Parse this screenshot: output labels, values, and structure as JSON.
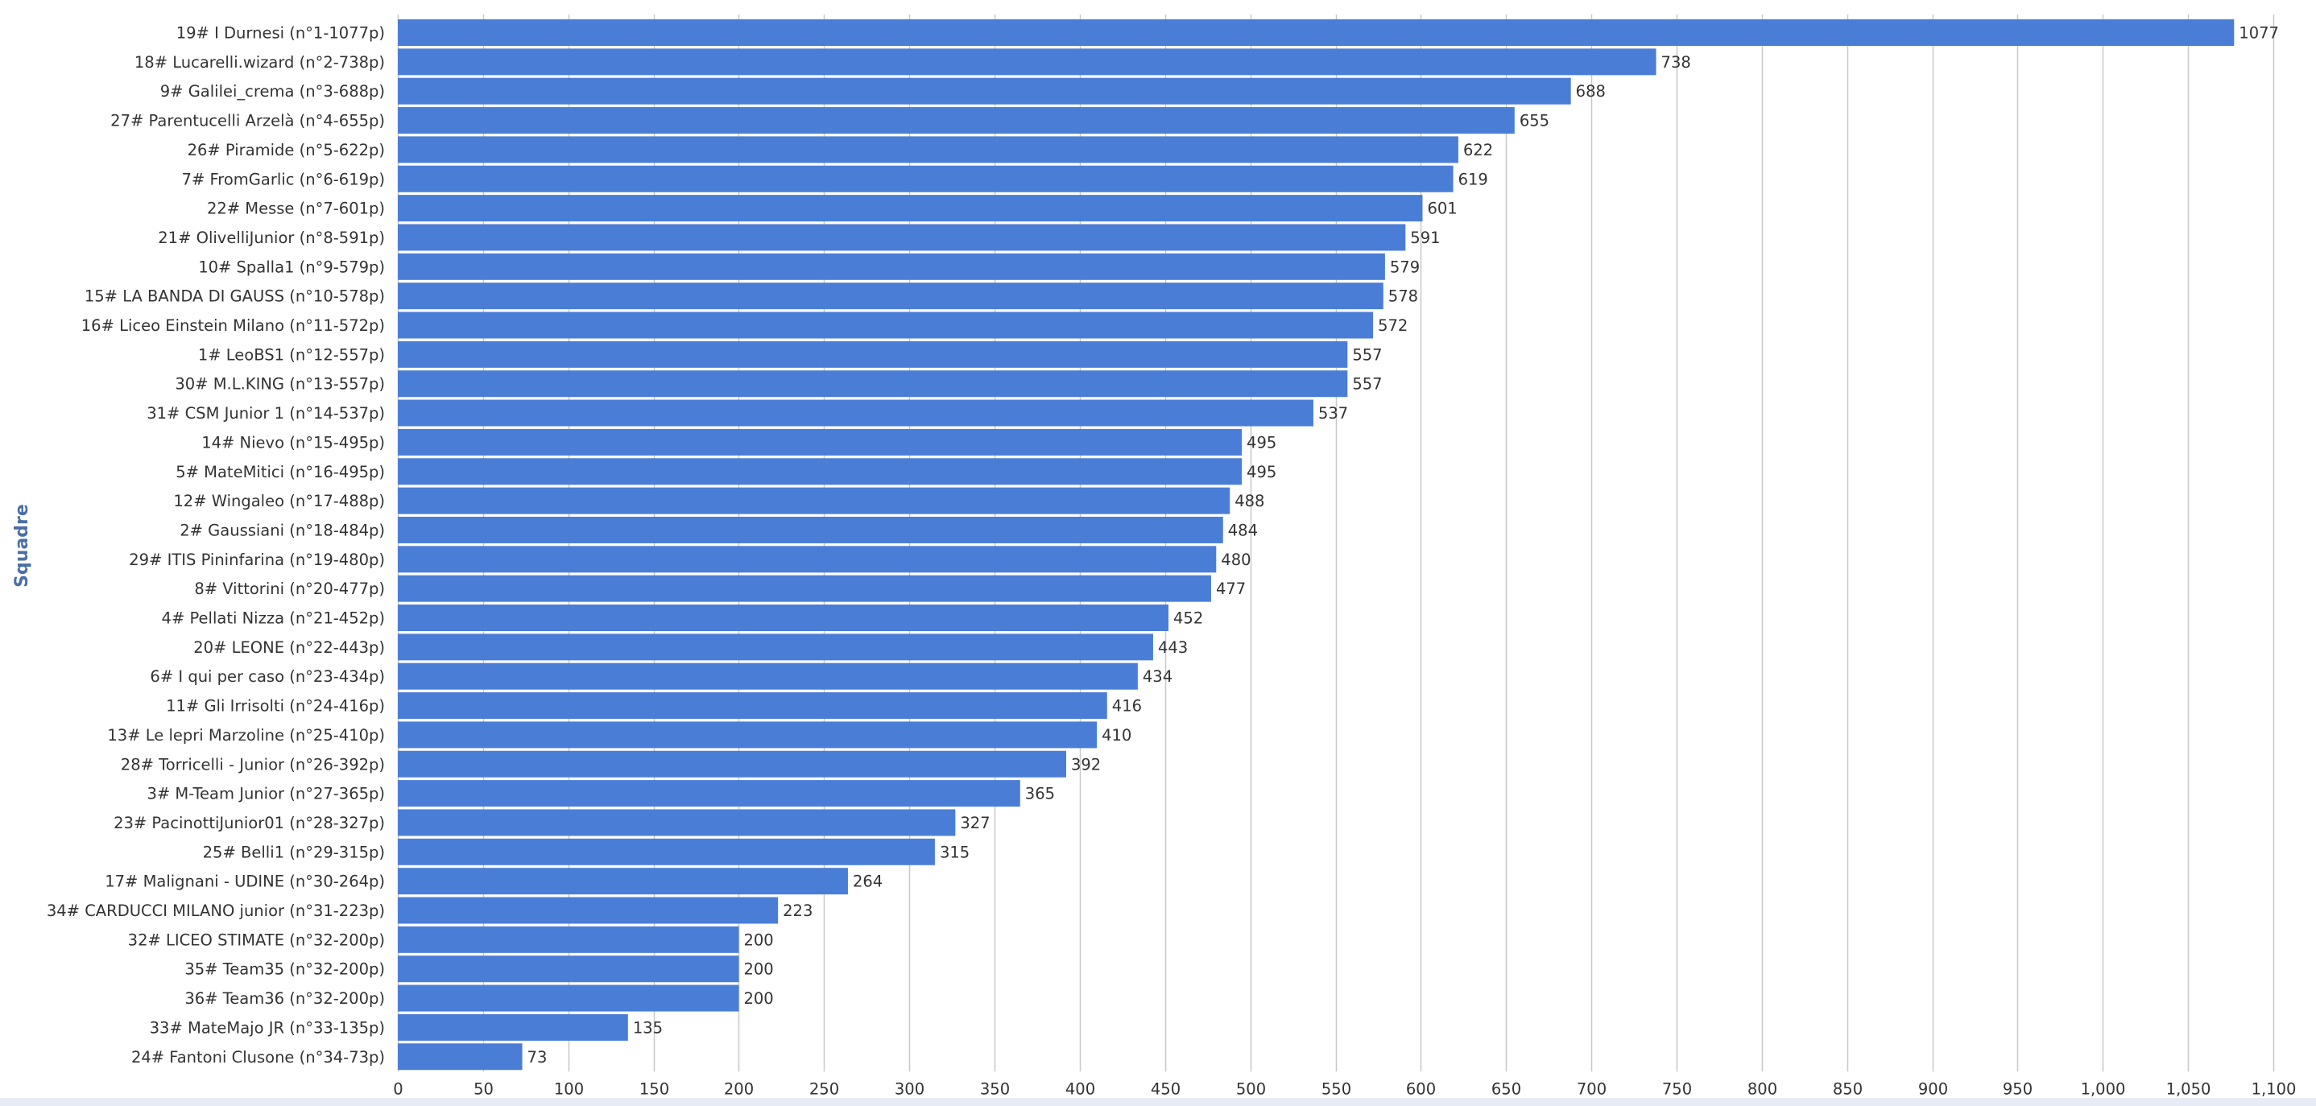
{
  "chart_data": {
    "type": "bar",
    "orientation": "horizontal",
    "ylabel": "Squadre",
    "xlim": [
      0,
      1100
    ],
    "x_ticks": [
      "0",
      "50",
      "100",
      "150",
      "200",
      "250",
      "300",
      "350",
      "400",
      "450",
      "500",
      "550",
      "600",
      "650",
      "700",
      "750",
      "800",
      "850",
      "900",
      "950",
      "1,000",
      "1,050",
      "1,100"
    ],
    "grid": "vertical",
    "categories": [
      "19# I Durnesi (n°1-1077p)",
      "18# Lucarelli.wizard (n°2-738p)",
      "9# Galilei_crema (n°3-688p)",
      "27# Parentucelli Arzelà (n°4-655p)",
      "26# Piramide (n°5-622p)",
      "7# FromGarlic (n°6-619p)",
      "22# Messe (n°7-601p)",
      "21# OlivelliJunior (n°8-591p)",
      "10# Spalla1 (n°9-579p)",
      "15# LA BANDA DI GAUSS (n°10-578p)",
      "16# Liceo Einstein Milano (n°11-572p)",
      "1# LeoBS1 (n°12-557p)",
      "30# M.L.KING (n°13-557p)",
      "31# CSM Junior 1 (n°14-537p)",
      "14# Nievo (n°15-495p)",
      "5# MateMitici (n°16-495p)",
      "12# Wingaleo (n°17-488p)",
      "2# Gaussiani (n°18-484p)",
      "29# ITIS Pininfarina (n°19-480p)",
      "8# Vittorini (n°20-477p)",
      "4# Pellati Nizza (n°21-452p)",
      "20# LEONE (n°22-443p)",
      "6# I qui per caso (n°23-434p)",
      "11# Gli Irrisolti (n°24-416p)",
      "13# Le lepri Marzoline (n°25-410p)",
      "28# Torricelli - Junior (n°26-392p)",
      "3# M-Team Junior (n°27-365p)",
      "23# PacinottiJunior01 (n°28-327p)",
      "25# Belli1 (n°29-315p)",
      "17# Malignani - UDINE (n°30-264p)",
      "34# CARDUCCI MILANO junior (n°31-223p)",
      "32# LICEO STIMATE (n°32-200p)",
      "35# Team35 (n°32-200p)",
      "36# Team36 (n°32-200p)",
      "33# MateMajo JR (n°33-135p)",
      "24# Fantoni Clusone (n°34-73p)"
    ],
    "values": [
      1077,
      738,
      688,
      655,
      622,
      619,
      601,
      591,
      579,
      578,
      572,
      557,
      557,
      537,
      495,
      495,
      488,
      484,
      480,
      477,
      452,
      443,
      434,
      416,
      410,
      392,
      365,
      327,
      315,
      264,
      223,
      200,
      200,
      200,
      135,
      73
    ],
    "colors": {
      "bar": "#4a7ed6",
      "grid": "#c8c8c8",
      "axis_title": "#4a6fa8",
      "text": "#333333"
    }
  }
}
